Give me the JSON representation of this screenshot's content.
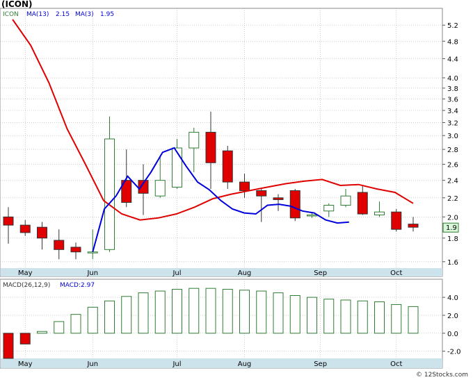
{
  "title": "(ICON)",
  "watermark": "© 12Stocks.com",
  "colors": {
    "up_candle_stroke": "#2e7d32",
    "down_candle_fill": "#e00000",
    "wick": "#333333",
    "ma13_line": "#e00000",
    "ma3_line": "#0000dd",
    "macd_bar_stroke": "#2e7d32",
    "axis_band": "#cde3ec",
    "grid": "#b0b0b0",
    "last_price_fill": "#d9f7d9"
  },
  "chart_data": [
    {
      "type": "candlestick",
      "legend": {
        "ticker": "ICON",
        "ma13_label": "MA(13)",
        "ma13_value": "2.15",
        "ma3_label": "MA(3)",
        "ma3_value": "1.95"
      },
      "ylim": [
        1.55,
        5.5
      ],
      "y_scale": "log",
      "y_ticks": [
        "1.6",
        "1.8",
        "2.0",
        "2.2",
        "2.4",
        "2.6",
        "2.8",
        "3.0",
        "3.2",
        "3.4",
        "3.6",
        "3.8",
        "4.0",
        "4.4",
        "4.8",
        "5.2"
      ],
      "x_month_labels": [
        "May",
        "Jun",
        "Jul",
        "Aug",
        "Sep",
        "Oct"
      ],
      "last_price_label": "1.9",
      "candles": [
        {
          "week": 1,
          "open": 2.0,
          "high": 2.1,
          "low": 1.75,
          "close": 1.92
        },
        {
          "week": 2,
          "open": 1.92,
          "high": 1.97,
          "low": 1.82,
          "close": 1.85
        },
        {
          "week": 3,
          "open": 1.9,
          "high": 1.95,
          "low": 1.7,
          "close": 1.8
        },
        {
          "week": 4,
          "open": 1.78,
          "high": 1.88,
          "low": 1.62,
          "close": 1.7
        },
        {
          "week": 5,
          "open": 1.72,
          "high": 1.76,
          "low": 1.62,
          "close": 1.68
        },
        {
          "week": 6,
          "open": 1.68,
          "high": 1.88,
          "low": 1.62,
          "close": 1.68
        },
        {
          "week": 7,
          "open": 1.7,
          "high": 3.3,
          "low": 1.68,
          "close": 2.95
        },
        {
          "week": 8,
          "open": 2.4,
          "high": 2.8,
          "low": 2.1,
          "close": 2.15
        },
        {
          "week": 9,
          "open": 2.4,
          "high": 2.6,
          "low": 2.02,
          "close": 2.25
        },
        {
          "week": 10,
          "open": 2.22,
          "high": 2.72,
          "low": 2.2,
          "close": 2.4
        },
        {
          "week": 11,
          "open": 2.32,
          "high": 2.95,
          "low": 2.3,
          "close": 2.82
        },
        {
          "week": 12,
          "open": 2.82,
          "high": 3.12,
          "low": 2.5,
          "close": 3.05
        },
        {
          "week": 13,
          "open": 3.05,
          "high": 3.38,
          "low": 2.3,
          "close": 2.62
        },
        {
          "week": 14,
          "open": 2.78,
          "high": 2.85,
          "low": 2.3,
          "close": 2.38
        },
        {
          "week": 15,
          "open": 2.38,
          "high": 2.48,
          "low": 2.2,
          "close": 2.28
        },
        {
          "week": 16,
          "open": 2.28,
          "high": 2.3,
          "low": 1.95,
          "close": 2.22
        },
        {
          "week": 17,
          "open": 2.2,
          "high": 2.24,
          "low": 2.06,
          "close": 2.18
        },
        {
          "week": 18,
          "open": 2.28,
          "high": 2.3,
          "low": 1.96,
          "close": 1.99
        },
        {
          "week": 19,
          "open": 2.02,
          "high": 2.04,
          "low": 1.99,
          "close": 2.02
        },
        {
          "week": 20,
          "open": 2.06,
          "high": 2.14,
          "low": 2.0,
          "close": 2.12
        },
        {
          "week": 21,
          "open": 2.12,
          "high": 2.3,
          "low": 2.1,
          "close": 2.22
        },
        {
          "week": 22,
          "open": 2.26,
          "high": 2.34,
          "low": 2.02,
          "close": 2.03
        },
        {
          "week": 23,
          "open": 2.02,
          "high": 2.16,
          "low": 2.0,
          "close": 2.05
        },
        {
          "week": 24,
          "open": 2.05,
          "high": 2.08,
          "low": 1.86,
          "close": 1.88
        },
        {
          "week": 25,
          "open": 1.93,
          "high": 2.0,
          "low": 1.86,
          "close": 1.9
        }
      ],
      "ma13": [
        5.35,
        4.7,
        3.9,
        3.1,
        2.6,
        2.17,
        2.03,
        1.97,
        1.99,
        2.03,
        2.1,
        2.19,
        2.24,
        2.28,
        2.32,
        2.36,
        2.39,
        2.41,
        2.34,
        2.35,
        2.3,
        2.26,
        2.14
      ],
      "ma3": [
        1.68,
        2.08,
        2.22,
        2.45,
        2.3,
        2.5,
        2.76,
        2.82,
        2.58,
        2.38,
        2.29,
        2.17,
        2.08,
        2.04,
        2.03,
        2.12,
        2.13,
        2.11,
        2.06,
        2.04,
        1.97,
        1.94,
        1.95
      ],
      "ma_start_week": 1.25
    },
    {
      "type": "bar",
      "legend": {
        "macd_label": "MACD(26,12,9)",
        "macd_value_label": "MACD:2.97"
      },
      "ylim": [
        -2.8,
        5.4
      ],
      "y_ticks": [
        "4.0",
        "2.0",
        "0.0",
        "-2.0"
      ],
      "x_month_labels": [
        "May",
        "Jun",
        "Jul",
        "Aug",
        "Sep",
        "Oct"
      ],
      "values": [
        -2.8,
        -1.2,
        0.2,
        1.3,
        2.1,
        2.9,
        3.6,
        4.1,
        4.5,
        4.7,
        4.9,
        5.0,
        5.0,
        4.9,
        4.8,
        4.7,
        4.5,
        4.2,
        4.0,
        3.8,
        3.7,
        3.6,
        3.5,
        3.2,
        2.97
      ]
    }
  ]
}
